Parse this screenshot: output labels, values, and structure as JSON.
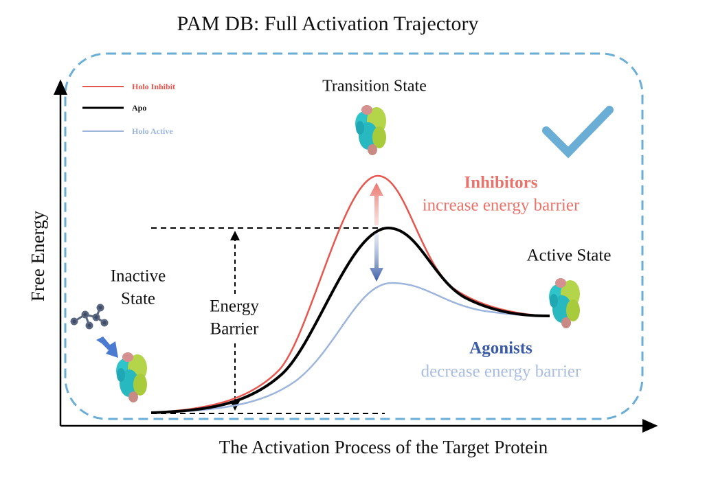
{
  "header": {
    "title": "PAM DB:  Full Activation Trajectory"
  },
  "legend": [
    "Holo Inhibit",
    "Apo",
    "Holo Active"
  ],
  "labels": {
    "transition_state": "Transition State",
    "inhibitors": "Inhibitors",
    "inhibitors_effect": "increase energy barrier",
    "active_state": "Active State",
    "inactive_state": [
      "Inactive",
      "State"
    ],
    "energy_barrier": [
      "Energy",
      "Barrier"
    ],
    "agonists": "Agonists",
    "agonists_effect": "decrease energy barrier"
  },
  "axes": {
    "y": "Free Energy",
    "x": "The Activation Process of the Target Protein"
  }
}
